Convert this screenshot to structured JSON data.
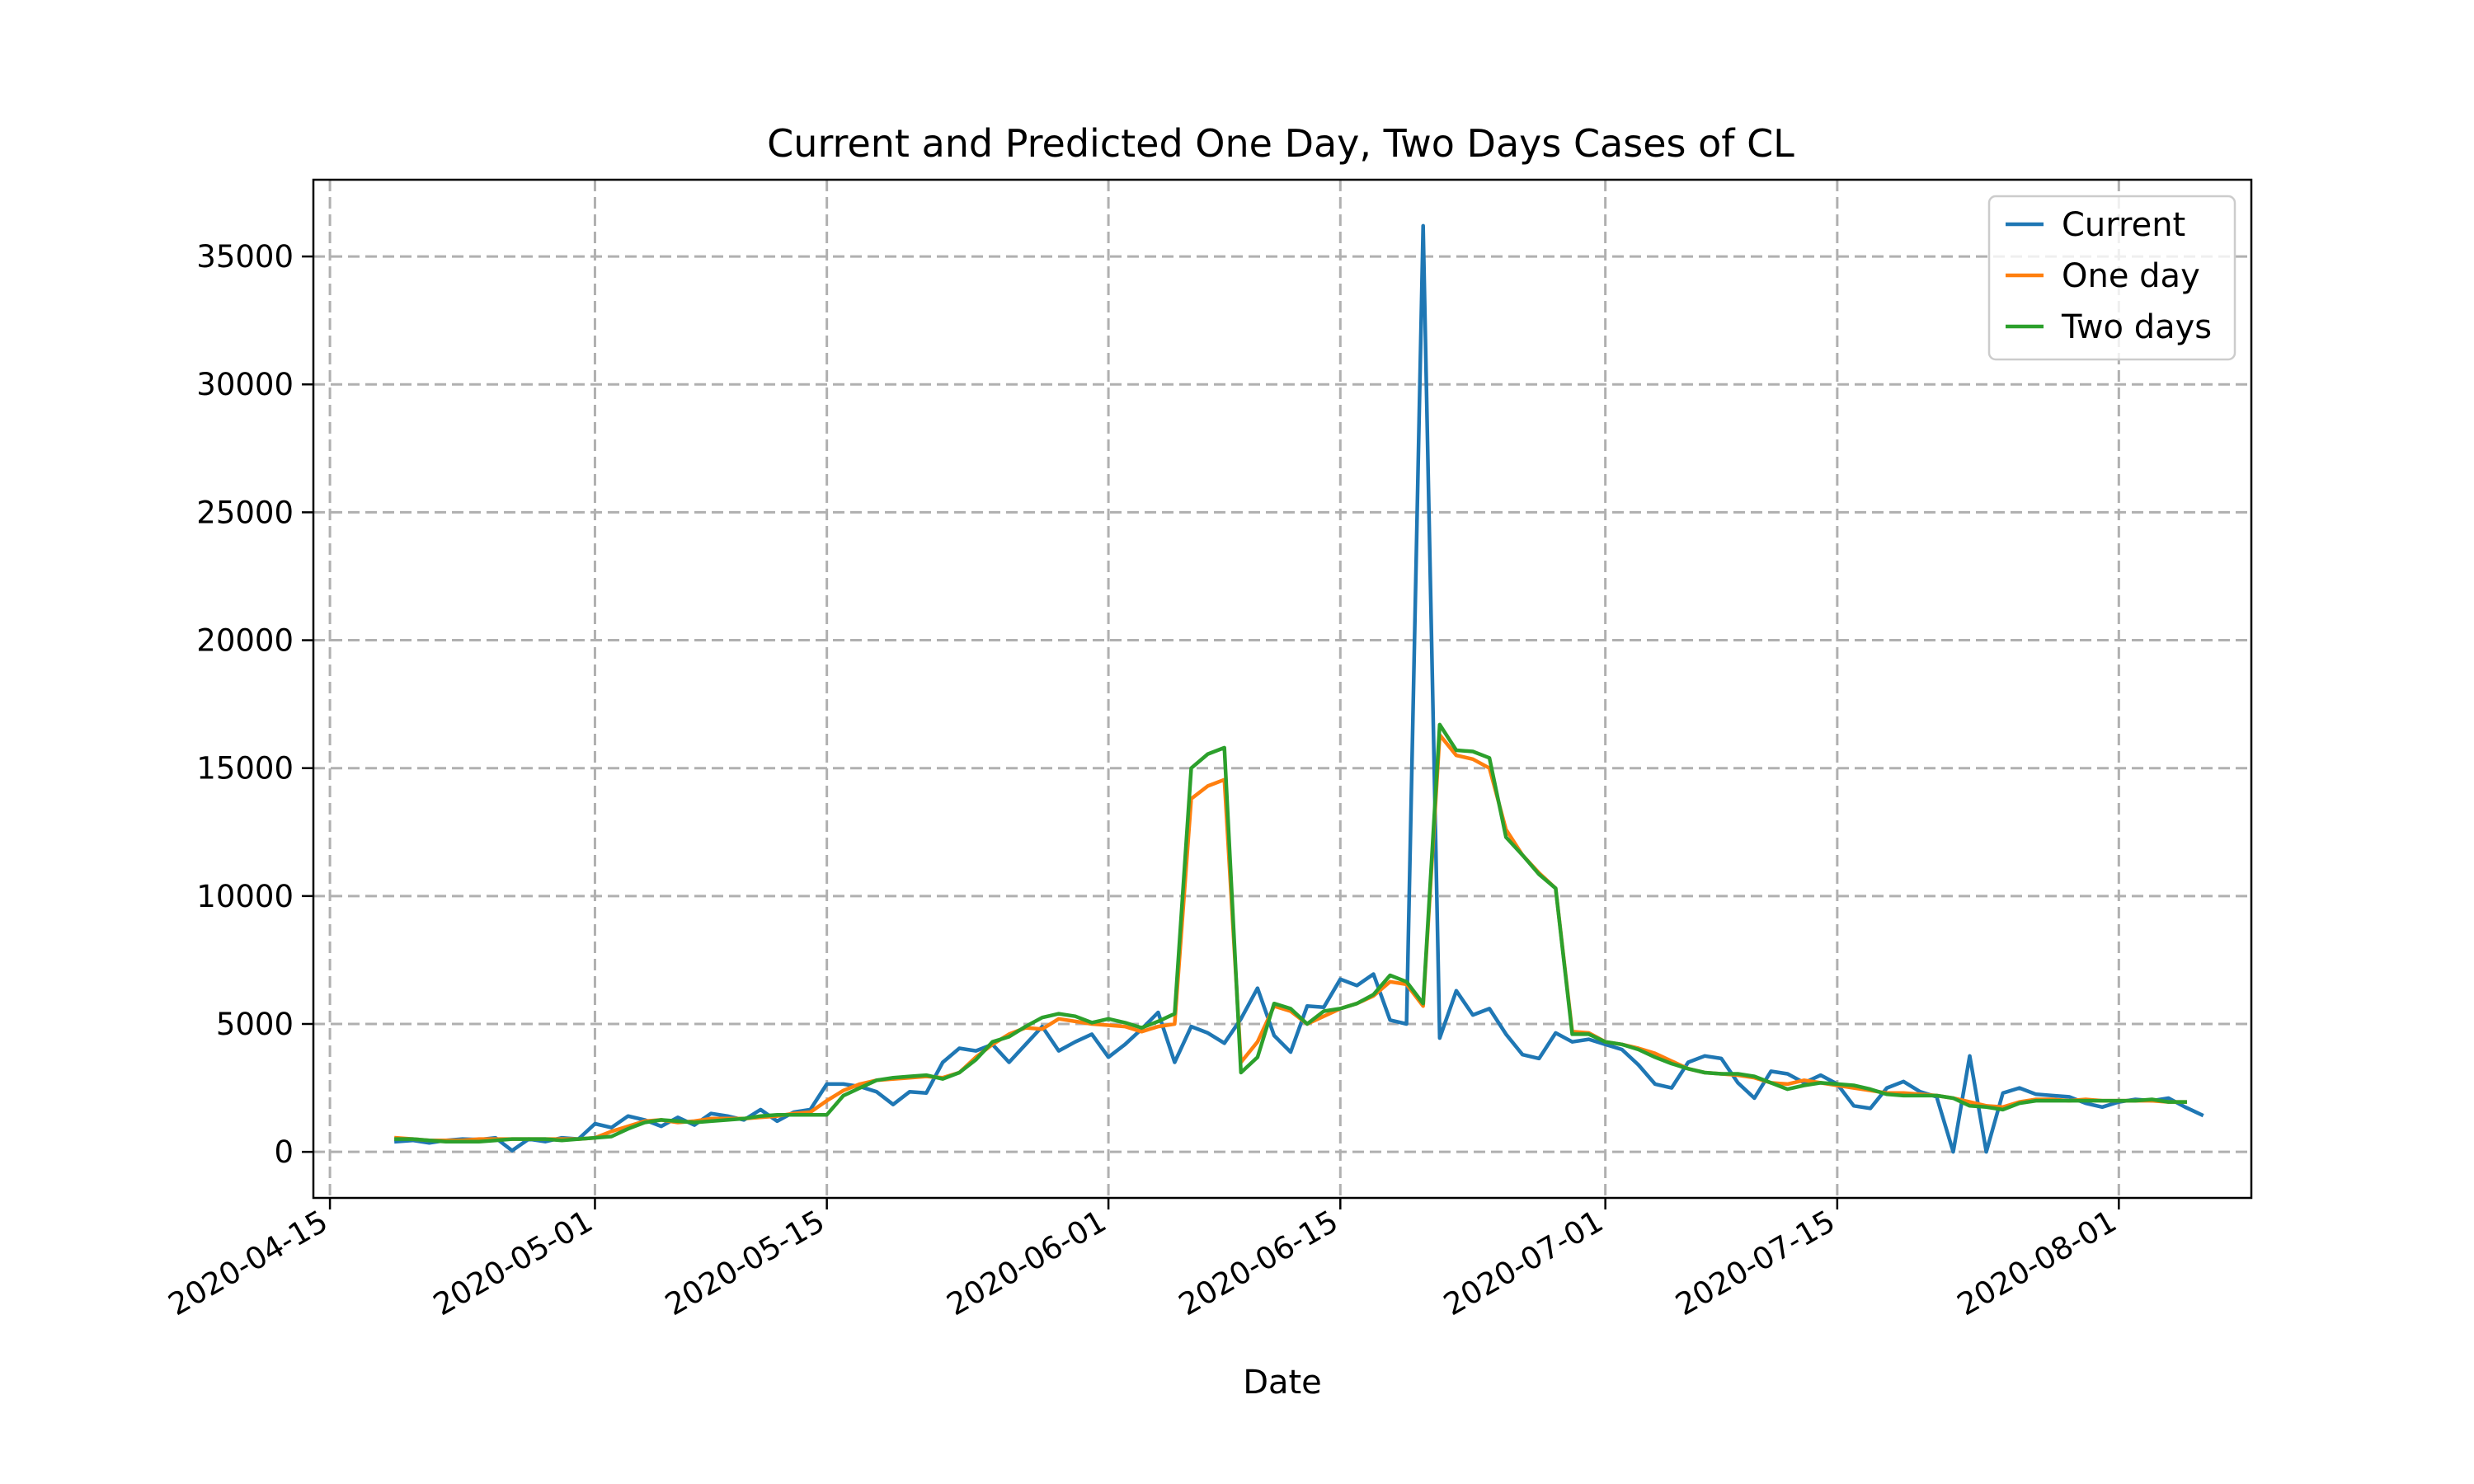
{
  "chart_data": {
    "type": "line",
    "title": "Current and Predicted One Day, Two Days Cases of CL",
    "xlabel": "Date",
    "ylabel": "",
    "x_tick_labels": [
      "2020-04-15",
      "2020-05-01",
      "2020-05-15",
      "2020-06-01",
      "2020-06-15",
      "2020-07-01",
      "2020-07-15",
      "2020-08-01"
    ],
    "y_tick_labels": [
      "0",
      "5000",
      "10000",
      "15000",
      "20000",
      "25000",
      "30000",
      "35000"
    ],
    "y_ticks": [
      0,
      5000,
      10000,
      15000,
      20000,
      25000,
      30000,
      35000
    ],
    "xlim": [
      "2020-04-14",
      "2020-08-09"
    ],
    "ylim": [
      -1800,
      38000
    ],
    "grid": true,
    "legend_position": "upper right",
    "start_date": "2020-04-19",
    "series": [
      {
        "name": "Current",
        "color": "#1f77b4",
        "values": [
          400,
          450,
          350,
          450,
          500,
          480,
          550,
          50,
          500,
          400,
          550,
          500,
          1100,
          950,
          1400,
          1250,
          1000,
          1350,
          1050,
          1500,
          1400,
          1250,
          1650,
          1200,
          1550,
          1650,
          2650,
          2650,
          2550,
          2350,
          1850,
          2350,
          2300,
          3500,
          4050,
          3950,
          4200,
          3500,
          4200,
          4900,
          3950,
          4300,
          4600,
          3700,
          4200,
          4800,
          5450,
          3500,
          4900,
          4650,
          4250,
          5200,
          6400,
          4550,
          3900,
          5700,
          5650,
          6750,
          6500,
          6950,
          5150,
          5000,
          36200,
          4450,
          6300,
          5350,
          5600,
          4600,
          3800,
          3650,
          4650,
          4300,
          4400,
          4200,
          4000,
          3400,
          2650,
          2500,
          3500,
          3750,
          3650,
          2700,
          2100,
          3150,
          3050,
          2700,
          3000,
          2650,
          1800,
          1700,
          2500,
          2750,
          2350,
          2150,
          0,
          3750,
          0,
          2300,
          2500,
          2250,
          2200,
          2150,
          1900,
          1750,
          1950,
          2050,
          2000,
          2100,
          1750,
          1450
        ]
      },
      {
        "name": "One day",
        "color": "#ff7f0e",
        "values": [
          550,
          500,
          450,
          450,
          450,
          500,
          500,
          500,
          500,
          500,
          500,
          500,
          550,
          800,
          1000,
          1200,
          1250,
          1150,
          1200,
          1300,
          1300,
          1300,
          1350,
          1400,
          1500,
          1550,
          2000,
          2400,
          2650,
          2800,
          2850,
          2900,
          2950,
          2900,
          3100,
          3700,
          4200,
          4600,
          4850,
          4800,
          5200,
          5100,
          5000,
          4950,
          4900,
          4700,
          4900,
          5000,
          13800,
          14300,
          14550,
          3500,
          4300,
          5700,
          5500,
          5000,
          5300,
          5600,
          5800,
          6100,
          6650,
          6550,
          5700,
          16300,
          15500,
          15350,
          15000,
          12600,
          11600,
          10900,
          10300,
          4700,
          4650,
          4300,
          4200,
          4050,
          3850,
          3550,
          3250,
          3100,
          3050,
          3000,
          2900,
          2700,
          2650,
          2800,
          2700,
          2600,
          2500,
          2400,
          2300,
          2300,
          2250,
          2200,
          2100,
          1950,
          1800,
          1750,
          1950,
          2050,
          2050,
          2000,
          2050,
          2000,
          2000,
          2000,
          2000,
          1950,
          1950
        ]
      },
      {
        "name": "Two days",
        "color": "#2ca02c",
        "values": [
          500,
          500,
          450,
          400,
          400,
          400,
          450,
          500,
          500,
          500,
          450,
          500,
          550,
          600,
          900,
          1150,
          1250,
          1200,
          1150,
          1200,
          1250,
          1300,
          1400,
          1450,
          1450,
          1450,
          1450,
          2200,
          2500,
          2800,
          2900,
          2950,
          3000,
          2850,
          3100,
          3600,
          4300,
          4500,
          4900,
          5250,
          5400,
          5300,
          5050,
          5200,
          5050,
          4850,
          5100,
          5400,
          15000,
          15550,
          15800,
          3100,
          3700,
          5800,
          5600,
          5000,
          5500,
          5600,
          5800,
          6150,
          6900,
          6650,
          5800,
          16700,
          15700,
          15650,
          15400,
          12300,
          11600,
          10850,
          10300,
          4600,
          4600,
          4300,
          4200,
          4000,
          3700,
          3450,
          3250,
          3100,
          3050,
          3050,
          2950,
          2700,
          2450,
          2600,
          2700,
          2650,
          2600,
          2450,
          2250,
          2200,
          2200,
          2200,
          2100,
          1800,
          1750,
          1650,
          1900,
          2000,
          2000,
          2000,
          2000,
          2000,
          2000,
          2000,
          2050,
          1950,
          1950
        ]
      }
    ]
  }
}
